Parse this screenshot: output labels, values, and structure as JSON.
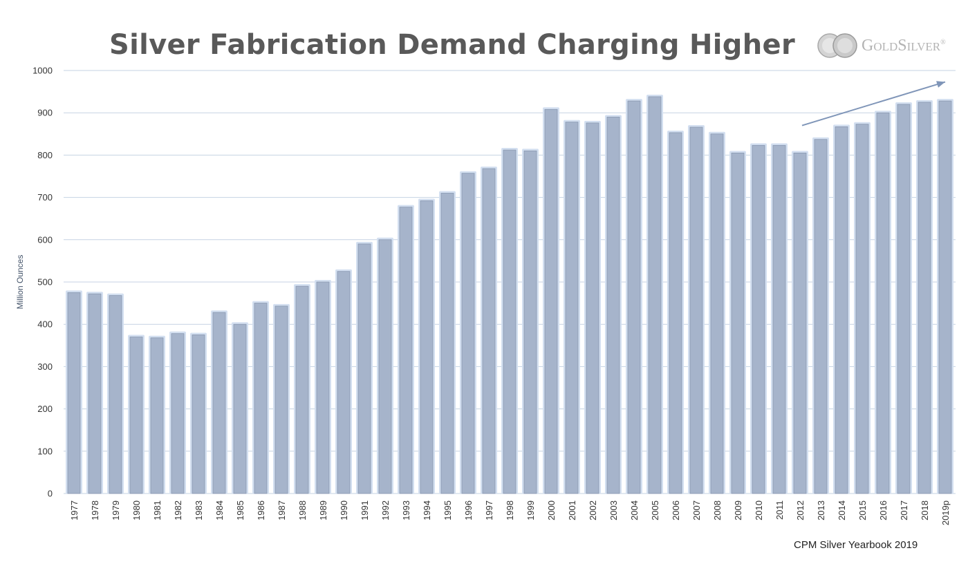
{
  "chart_data": {
    "type": "bar",
    "title": "Silver Fabrication Demand Charging Higher",
    "ylabel": "Million Ounces",
    "xlabel": "",
    "ylim": [
      0,
      1000
    ],
    "yticks": [
      0,
      100,
      200,
      300,
      400,
      500,
      600,
      700,
      800,
      900,
      1000
    ],
    "grid": true,
    "categories": [
      "1977",
      "1978",
      "1979",
      "1980",
      "1981",
      "1982",
      "1983",
      "1984",
      "1985",
      "1986",
      "1987",
      "1988",
      "1989",
      "1990",
      "1991",
      "1992",
      "1993",
      "1994",
      "1995",
      "1996",
      "1997",
      "1998",
      "1999",
      "2000",
      "2001",
      "2002",
      "2003",
      "2004",
      "2005",
      "2006",
      "2007",
      "2008",
      "2009",
      "2010",
      "2011",
      "2012",
      "2013",
      "2014",
      "2015",
      "2016",
      "2017",
      "2018",
      "2019p"
    ],
    "values": [
      475,
      472,
      468,
      370,
      368,
      378,
      375,
      428,
      400,
      450,
      443,
      490,
      500,
      525,
      590,
      600,
      677,
      692,
      710,
      757,
      768,
      812,
      810,
      908,
      878,
      876,
      890,
      928,
      938,
      853,
      866,
      850,
      805,
      823,
      823,
      805,
      837,
      867,
      873,
      900,
      920,
      925,
      928
    ],
    "bar_color": "#a6b4cb",
    "bar_glow_color": "#d3dff0",
    "annotation": "upward trend arrow over 2012-2019p"
  },
  "logo": {
    "text": "GoldSilver",
    "tm": "®"
  },
  "source": "CPM Silver Yearbook 2019",
  "colors": {
    "grid": "#c5d2e3",
    "title": "#595959",
    "arrow": "#7f95b8"
  }
}
